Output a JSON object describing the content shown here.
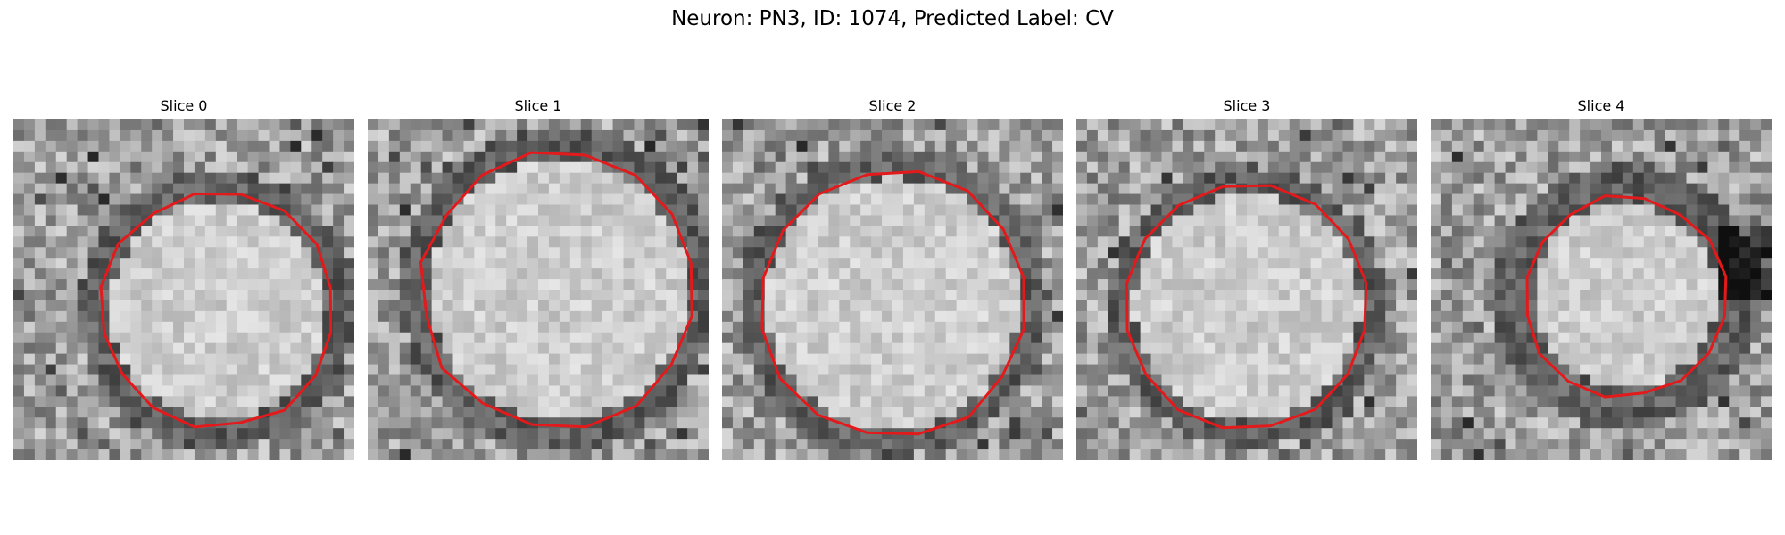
{
  "figure": {
    "title": "Neuron: PN3, ID: 1074, Predicted Label: CV"
  },
  "panels": [
    {
      "title": "Slice 0",
      "outline_color": "#e31a1c",
      "cell_radius_fraction": 0.34,
      "membrane_shade": "dark",
      "texture": "grayscale EM noise"
    },
    {
      "title": "Slice 1",
      "outline_color": "#e31a1c",
      "cell_radius_fraction": 0.4,
      "membrane_shade": "dark",
      "texture": "grayscale EM noise"
    },
    {
      "title": "Slice 2",
      "outline_color": "#e31a1c",
      "cell_radius_fraction": 0.39,
      "membrane_shade": "dark",
      "texture": "grayscale EM noise"
    },
    {
      "title": "Slice 3",
      "outline_color": "#e31a1c",
      "cell_radius_fraction": 0.35,
      "membrane_shade": "dark",
      "texture": "grayscale EM noise"
    },
    {
      "title": "Slice 4",
      "outline_color": "#e31a1c",
      "cell_radius_fraction": 0.29,
      "membrane_shade": "dark",
      "texture": "grayscale EM noise"
    }
  ]
}
